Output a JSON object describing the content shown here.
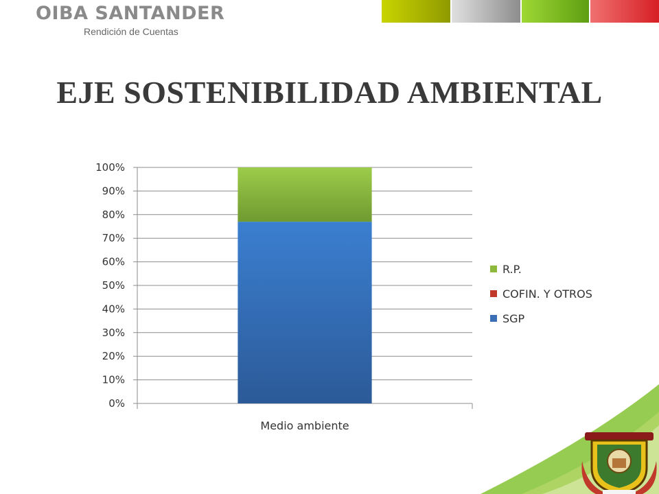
{
  "header": {
    "brand_name": "OIBA SANTANDER",
    "brand_subtitle": "Rendición de Cuentas",
    "swatches": [
      {
        "name": "olive",
        "color": "#a8b400"
      },
      {
        "name": "gray",
        "color": "#a3a3a3"
      },
      {
        "name": "green",
        "color": "#7cc01f"
      },
      {
        "name": "red",
        "color": "#e0262a"
      }
    ]
  },
  "slide_title": "EJE SOSTENIBILIDAD AMBIENTAL",
  "chart_data": {
    "type": "bar",
    "stacked": "percent",
    "categories": [
      "Medio ambiente"
    ],
    "series": [
      {
        "name": "SGP",
        "values": [
          77
        ],
        "color": "#3a6fb5"
      },
      {
        "name": "COFIN. Y OTROS",
        "values": [
          0
        ],
        "color": "#c0392b"
      },
      {
        "name": "R.P.",
        "values": [
          23
        ],
        "color": "#8cb83c"
      }
    ],
    "y_ticks": [
      "0%",
      "10%",
      "20%",
      "30%",
      "40%",
      "50%",
      "60%",
      "70%",
      "80%",
      "90%",
      "100%"
    ],
    "ylim": [
      0,
      100
    ],
    "grid": true,
    "legend_position": "right"
  },
  "footer": {
    "emblem_icon": "coat-of-arms-icon"
  }
}
